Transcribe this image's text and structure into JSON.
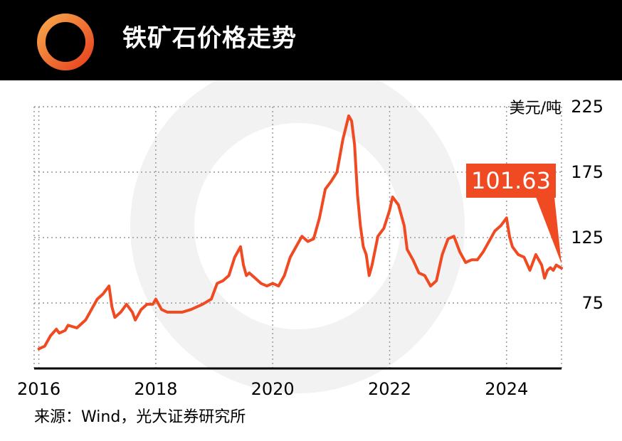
{
  "header": {
    "title": "铁矿石价格走势"
  },
  "colors": {
    "accent": "#f04a23",
    "header_bg": "#000000",
    "line": "#f04a23"
  },
  "chart_data": {
    "type": "line",
    "title": "铁矿石价格走势",
    "unit_label": "美元/吨",
    "x_ticks": [
      "2016",
      "2018",
      "2020",
      "2022",
      "2024"
    ],
    "y_ticks": [
      "225",
      "175",
      "125",
      "75"
    ],
    "ylim": [
      25,
      225
    ],
    "xlim": [
      2015.92,
      2024.94
    ],
    "grid": true,
    "y_axis_side": "right",
    "latest_value_label": "101.63",
    "series": [
      {
        "x": [
          2016.0,
          2016.1,
          2016.2,
          2016.3,
          2016.35,
          2016.45,
          2016.5,
          2016.65,
          2016.8,
          2016.9,
          2017.0,
          2017.1,
          2017.2,
          2017.25,
          2017.3,
          2017.4,
          2017.5,
          2017.6,
          2017.65,
          2017.75,
          2017.85,
          2017.95,
          2018.0,
          2018.1,
          2018.2,
          2018.3,
          2018.45,
          2018.6,
          2018.8,
          2018.95,
          2019.05,
          2019.15,
          2019.25,
          2019.35,
          2019.45,
          2019.5,
          2019.55,
          2019.6,
          2019.7,
          2019.8,
          2019.9,
          2020.0,
          2020.1,
          2020.2,
          2020.3,
          2020.4,
          2020.5,
          2020.6,
          2020.7,
          2020.8,
          2020.9,
          2021.0,
          2021.1,
          2021.2,
          2021.3,
          2021.35,
          2021.4,
          2021.45,
          2021.5,
          2021.55,
          2021.6,
          2021.65,
          2021.7,
          2021.8,
          2021.9,
          2022.0,
          2022.05,
          2022.15,
          2022.25,
          2022.3,
          2022.4,
          2022.5,
          2022.6,
          2022.7,
          2022.8,
          2022.9,
          2023.0,
          2023.1,
          2023.2,
          2023.3,
          2023.4,
          2023.5,
          2023.6,
          2023.7,
          2023.8,
          2023.9,
          2024.0,
          2024.05,
          2024.1,
          2024.2,
          2024.3,
          2024.4,
          2024.5,
          2024.6,
          2024.65,
          2024.7,
          2024.75,
          2024.8,
          2024.85,
          2024.94
        ],
        "y": [
          40,
          42,
          50,
          55,
          52,
          54,
          58,
          56,
          62,
          70,
          78,
          82,
          88,
          72,
          64,
          68,
          74,
          68,
          62,
          70,
          74,
          74,
          78,
          70,
          68,
          68,
          68,
          70,
          74,
          78,
          90,
          92,
          96,
          110,
          118,
          104,
          96,
          98,
          94,
          90,
          88,
          90,
          88,
          96,
          110,
          118,
          126,
          122,
          124,
          140,
          162,
          168,
          175,
          200,
          218,
          214,
          196,
          158,
          134,
          118,
          112,
          96,
          104,
          126,
          132,
          146,
          156,
          150,
          134,
          116,
          108,
          98,
          96,
          88,
          92,
          112,
          124,
          126,
          114,
          106,
          108,
          108,
          114,
          122,
          130,
          134,
          140,
          126,
          118,
          112,
          110,
          100,
          112,
          104,
          94,
          100,
          102,
          100,
          104,
          101.63
        ]
      }
    ]
  },
  "footer": {
    "source": "来源：Wind，光大证券研究所"
  }
}
